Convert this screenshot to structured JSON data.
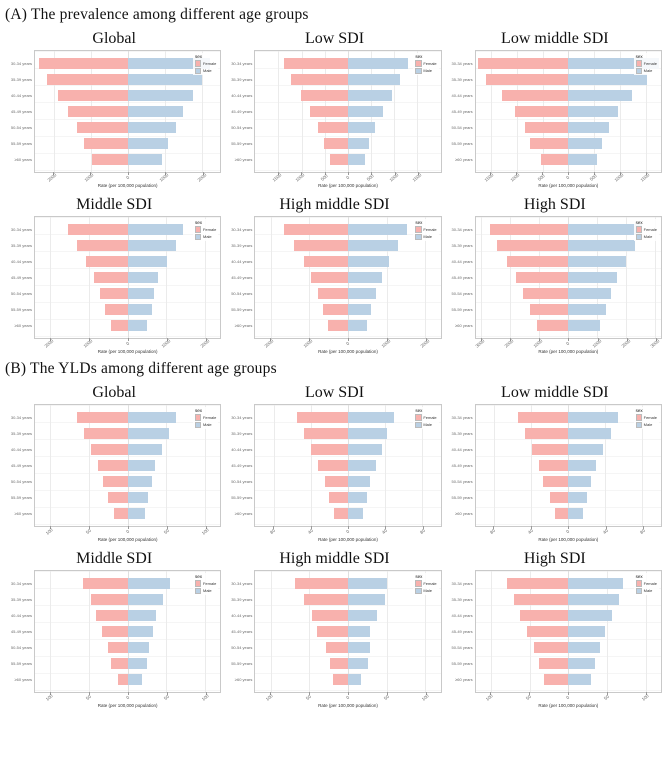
{
  "figure": {
    "kind": "scientific-figure",
    "panel_count": 12
  },
  "colors": {
    "female_fill": "#F8B1AD",
    "male_fill": "#B9D0E4",
    "panel_border": "#c9c9c9",
    "gridline": "#ebebeb",
    "text_muted": "#6b6b6b"
  },
  "legend": {
    "title": "sex",
    "entries": [
      {
        "label": "Female",
        "color": "#F8B1AD"
      },
      {
        "label": "Male",
        "color": "#B9D0E4"
      }
    ]
  },
  "sections": [
    {
      "id": "A",
      "heading": "(A) The prevalence among different age groups"
    },
    {
      "id": "B",
      "heading": "(B) The YLDs among different age groups"
    }
  ],
  "age_groups": [
    "30-34 years",
    "35-39 years",
    "40-44 years",
    "45-49 years",
    "50-54 years",
    "55-59 years",
    "≥60 years"
  ],
  "xlabel": "Rate (per 100,000 population)",
  "chart_data": [
    {
      "type": "bar",
      "orientation": "diverging-horizontal",
      "section": "A",
      "title": "Global",
      "categories": [
        "30-34 years",
        "35-39 years",
        "40-44 years",
        "45-49 years",
        "50-54 years",
        "55-59 years",
        "≥60 years"
      ],
      "series": [
        {
          "name": "Female",
          "values": [
            2400,
            2180,
            1890,
            1600,
            1380,
            1170,
            960
          ]
        },
        {
          "name": "Male",
          "values": [
            2210,
            2010,
            1760,
            1500,
            1300,
            1100,
            920
          ]
        }
      ],
      "axis_max": 2500,
      "ticks": [
        -2000,
        -1000,
        0,
        1000,
        2000
      ],
      "tick_labels": [
        "2000",
        "1000",
        "0",
        "1000",
        "2000"
      ],
      "xlabel": "Rate (per 100,000 population)",
      "legend_position": "top-right",
      "grid": true
    },
    {
      "type": "bar",
      "orientation": "diverging-horizontal",
      "section": "A",
      "title": "Low SDI",
      "categories": [
        "30-34 years",
        "35-39 years",
        "40-44 years",
        "45-49 years",
        "50-54 years",
        "55-59 years",
        "≥60 years"
      ],
      "series": [
        {
          "name": "Female",
          "values": [
            1390,
            1220,
            1020,
            820,
            650,
            520,
            380
          ]
        },
        {
          "name": "Male",
          "values": [
            1290,
            1130,
            960,
            760,
            590,
            460,
            360
          ]
        }
      ],
      "axis_max": 2000,
      "ticks": [
        -1500,
        -1000,
        -500,
        0,
        500,
        1000,
        1500
      ],
      "tick_labels": [
        "1500",
        "1000",
        "500",
        "0",
        "500",
        "1000",
        "1500"
      ],
      "xlabel": "Rate (per 100,000 population)",
      "legend_position": "top-right",
      "grid": true
    },
    {
      "type": "bar",
      "orientation": "diverging-horizontal",
      "section": "A",
      "title": "Low middle SDI",
      "categories": [
        "30-34 years",
        "35-39 years",
        "40-44 years",
        "45-49 years",
        "50-54 years",
        "55-59 years",
        "≥60 years"
      ],
      "series": [
        {
          "name": "Female",
          "values": [
            1750,
            1590,
            1280,
            1030,
            850,
            740,
            530
          ]
        },
        {
          "name": "Male",
          "values": [
            1760,
            1520,
            1230,
            960,
            800,
            660,
            550
          ]
        }
      ],
      "axis_max": 1800,
      "ticks": [
        -1500,
        -1000,
        -500,
        0,
        500,
        1000,
        1500
      ],
      "tick_labels": [
        "1500",
        "1000",
        "500",
        "0",
        "500",
        "1000",
        "1500"
      ],
      "xlabel": "Rate (per 100,000 population)",
      "legend_position": "top-right",
      "grid": true
    },
    {
      "type": "bar",
      "orientation": "diverging-horizontal",
      "section": "A",
      "title": "Middle SDI",
      "categories": [
        "30-34 years",
        "35-39 years",
        "40-44 years",
        "45-49 years",
        "50-54 years",
        "55-59 years",
        "≥60 years"
      ],
      "series": [
        {
          "name": "Female",
          "values": [
            1540,
            1310,
            1090,
            880,
            710,
            580,
            440
          ]
        },
        {
          "name": "Male",
          "values": [
            1430,
            1250,
            1010,
            790,
            680,
            620,
            510
          ]
        }
      ],
      "axis_max": 2400,
      "ticks": [
        -2000,
        -1000,
        0,
        1000,
        2000
      ],
      "tick_labels": [
        "2000",
        "1000",
        "0",
        "1000",
        "2000"
      ],
      "xlabel": "Rate (per 100,000 population)",
      "legend_position": "top-right",
      "grid": true
    },
    {
      "type": "bar",
      "orientation": "diverging-horizontal",
      "section": "A",
      "title": "High middle SDI",
      "categories": [
        "30-34 years",
        "35-39 years",
        "40-44 years",
        "45-49 years",
        "50-54 years",
        "55-59 years",
        "≥60 years"
      ],
      "series": [
        {
          "name": "Female",
          "values": [
            1650,
            1400,
            1150,
            950,
            780,
            640,
            520
          ]
        },
        {
          "name": "Male",
          "values": [
            1520,
            1300,
            1060,
            870,
            730,
            600,
            490
          ]
        }
      ],
      "axis_max": 2400,
      "ticks": [
        -2000,
        -1000,
        0,
        1000,
        2000
      ],
      "tick_labels": [
        "2000",
        "1000",
        "0",
        "1000",
        "2000"
      ],
      "xlabel": "Rate (per 100,000 population)",
      "legend_position": "top-right",
      "grid": true
    },
    {
      "type": "bar",
      "orientation": "diverging-horizontal",
      "section": "A",
      "title": "High SDI",
      "categories": [
        "30-34 years",
        "35-39 years",
        "40-44 years",
        "45-49 years",
        "50-54 years",
        "55-59 years",
        "≥60 years"
      ],
      "series": [
        {
          "name": "Female",
          "values": [
            2720,
            2460,
            2110,
            1820,
            1550,
            1330,
            1090
          ]
        },
        {
          "name": "Male",
          "values": [
            2540,
            2310,
            1990,
            1690,
            1460,
            1310,
            1100
          ]
        }
      ],
      "axis_max": 3200,
      "ticks": [
        -3000,
        -2000,
        -1000,
        0,
        1000,
        2000,
        3000
      ],
      "tick_labels": [
        "3000",
        "2000",
        "1000",
        "0",
        "1000",
        "2000",
        "3000"
      ],
      "xlabel": "Rate (per 100,000 population)",
      "legend_position": "top-right",
      "grid": true
    },
    {
      "type": "bar",
      "orientation": "diverging-horizontal",
      "section": "B",
      "title": "Global",
      "categories": [
        "30-34 years",
        "35-39 years",
        "40-44 years",
        "45-49 years",
        "50-54 years",
        "55-59 years",
        "≥60 years"
      ],
      "series": [
        {
          "name": "Female",
          "values": [
            66,
            57,
            47,
            38,
            32,
            25,
            18
          ]
        },
        {
          "name": "Male",
          "values": [
            62,
            54,
            45,
            36,
            32,
            26,
            22
          ]
        }
      ],
      "axis_max": 120,
      "ticks": [
        -100,
        -50,
        0,
        50,
        100
      ],
      "tick_labels": [
        "100",
        "50",
        "0",
        "50",
        "100"
      ],
      "xlabel": "Rate (per 100,000 population)",
      "legend_position": "top-right",
      "grid": true
    },
    {
      "type": "bar",
      "orientation": "diverging-horizontal",
      "section": "B",
      "title": "Low SDI",
      "categories": [
        "30-34 years",
        "35-39 years",
        "40-44 years",
        "45-49 years",
        "50-54 years",
        "55-59 years",
        "≥60 years"
      ],
      "series": [
        {
          "name": "Female",
          "values": [
            55,
            47,
            40,
            32,
            25,
            20,
            15
          ]
        },
        {
          "name": "Male",
          "values": [
            50,
            42,
            37,
            30,
            24,
            20,
            16
          ]
        }
      ],
      "axis_max": 100,
      "ticks": [
        -80,
        -40,
        0,
        40,
        80
      ],
      "tick_labels": [
        "80",
        "40",
        "0",
        "40",
        "80"
      ],
      "xlabel": "Rate (per 100,000 population)",
      "legend_position": "top-right",
      "grid": true
    },
    {
      "type": "bar",
      "orientation": "diverging-horizontal",
      "section": "B",
      "title": "Low middle SDI",
      "categories": [
        "30-34 years",
        "35-39 years",
        "40-44 years",
        "45-49 years",
        "50-54 years",
        "55-59 years",
        "≥60 years"
      ],
      "series": [
        {
          "name": "Female",
          "values": [
            54,
            47,
            39,
            32,
            27,
            20,
            14
          ]
        },
        {
          "name": "Male",
          "values": [
            54,
            46,
            37,
            30,
            25,
            20,
            16
          ]
        }
      ],
      "axis_max": 100,
      "ticks": [
        -80,
        -40,
        0,
        40,
        80
      ],
      "tick_labels": [
        "80",
        "40",
        "0",
        "40",
        "80"
      ],
      "xlabel": "Rate (per 100,000 population)",
      "legend_position": "top-right",
      "grid": true
    },
    {
      "type": "bar",
      "orientation": "diverging-horizontal",
      "section": "B",
      "title": "Middle SDI",
      "categories": [
        "30-34 years",
        "35-39 years",
        "40-44 years",
        "45-49 years",
        "50-54 years",
        "55-59 years",
        "≥60 years"
      ],
      "series": [
        {
          "name": "Female",
          "values": [
            58,
            47,
            41,
            33,
            26,
            22,
            13
          ]
        },
        {
          "name": "Male",
          "values": [
            55,
            46,
            37,
            33,
            27,
            25,
            19
          ]
        }
      ],
      "axis_max": 120,
      "ticks": [
        -100,
        -50,
        0,
        50,
        100
      ],
      "tick_labels": [
        "100",
        "50",
        "0",
        "50",
        "100"
      ],
      "xlabel": "Rate (per 100,000 population)",
      "legend_position": "top-right",
      "grid": true
    },
    {
      "type": "bar",
      "orientation": "diverging-horizontal",
      "section": "B",
      "title": "High middle SDI",
      "categories": [
        "30-34 years",
        "35-39 years",
        "40-44 years",
        "45-49 years",
        "50-54 years",
        "55-59 years",
        "≥60 years"
      ],
      "series": [
        {
          "name": "Female",
          "values": [
            69,
            57,
            47,
            40,
            29,
            23,
            20
          ]
        },
        {
          "name": "Male",
          "values": [
            50,
            48,
            38,
            29,
            28,
            26,
            17
          ]
        }
      ],
      "axis_max": 120,
      "ticks": [
        -100,
        -50,
        0,
        50,
        100
      ],
      "tick_labels": [
        "100",
        "50",
        "0",
        "50",
        "100"
      ],
      "xlabel": "Rate (per 100,000 population)",
      "legend_position": "top-right",
      "grid": true
    },
    {
      "type": "bar",
      "orientation": "diverging-horizontal",
      "section": "B",
      "title": "High SDI",
      "categories": [
        "30-34 years",
        "35-39 years",
        "40-44 years",
        "45-49 years",
        "50-54 years",
        "55-59 years",
        "≥60 years"
      ],
      "series": [
        {
          "name": "Female",
          "values": [
            79,
            71,
            62,
            54,
            45,
            38,
            32
          ]
        },
        {
          "name": "Male",
          "values": [
            71,
            65,
            56,
            47,
            41,
            34,
            29
          ]
        }
      ],
      "axis_max": 120,
      "ticks": [
        -100,
        -50,
        0,
        50,
        100
      ],
      "tick_labels": [
        "100",
        "50",
        "0",
        "50",
        "100"
      ],
      "xlabel": "Rate (per 100,000 population)",
      "legend_position": "top-right",
      "grid": true
    }
  ]
}
